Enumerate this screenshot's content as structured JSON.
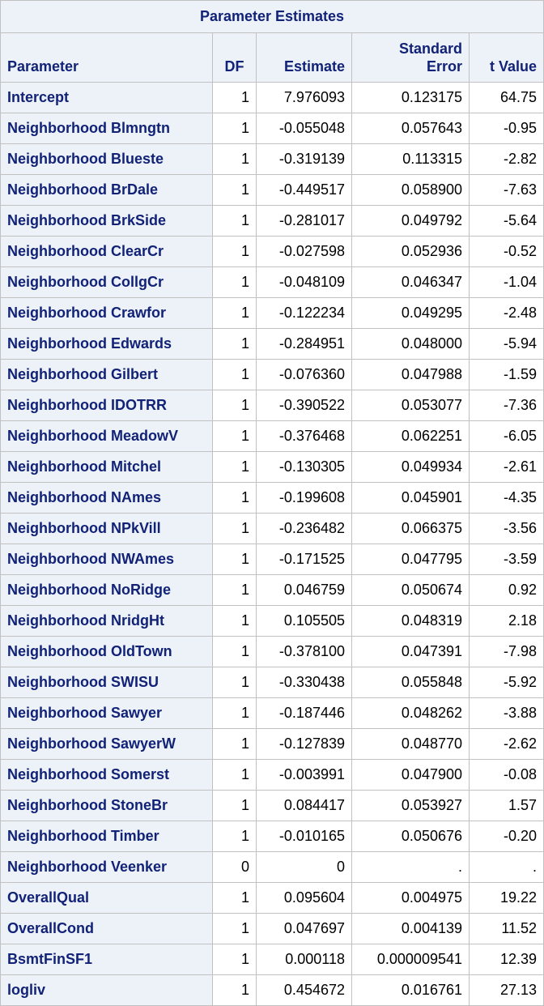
{
  "table": {
    "title": "Parameter Estimates",
    "columns": [
      "Parameter",
      "DF",
      "Estimate",
      "Standard Error",
      "t Value"
    ],
    "column_lines": {
      "standard_error": [
        "Standard",
        "Error"
      ]
    },
    "rows": [
      {
        "parameter": "Intercept",
        "df": "1",
        "estimate": "7.976093",
        "stderr": "0.123175",
        "t": "64.75"
      },
      {
        "parameter": "Neighborhood Blmngtn",
        "df": "1",
        "estimate": "-0.055048",
        "stderr": "0.057643",
        "t": "-0.95"
      },
      {
        "parameter": "Neighborhood Blueste",
        "df": "1",
        "estimate": "-0.319139",
        "stderr": "0.113315",
        "t": "-2.82"
      },
      {
        "parameter": "Neighborhood BrDale",
        "df": "1",
        "estimate": "-0.449517",
        "stderr": "0.058900",
        "t": "-7.63"
      },
      {
        "parameter": "Neighborhood BrkSide",
        "df": "1",
        "estimate": "-0.281017",
        "stderr": "0.049792",
        "t": "-5.64"
      },
      {
        "parameter": "Neighborhood ClearCr",
        "df": "1",
        "estimate": "-0.027598",
        "stderr": "0.052936",
        "t": "-0.52"
      },
      {
        "parameter": "Neighborhood CollgCr",
        "df": "1",
        "estimate": "-0.048109",
        "stderr": "0.046347",
        "t": "-1.04"
      },
      {
        "parameter": "Neighborhood Crawfor",
        "df": "1",
        "estimate": "-0.122234",
        "stderr": "0.049295",
        "t": "-2.48"
      },
      {
        "parameter": "Neighborhood Edwards",
        "df": "1",
        "estimate": "-0.284951",
        "stderr": "0.048000",
        "t": "-5.94"
      },
      {
        "parameter": "Neighborhood Gilbert",
        "df": "1",
        "estimate": "-0.076360",
        "stderr": "0.047988",
        "t": "-1.59"
      },
      {
        "parameter": "Neighborhood IDOTRR",
        "df": "1",
        "estimate": "-0.390522",
        "stderr": "0.053077",
        "t": "-7.36"
      },
      {
        "parameter": "Neighborhood MeadowV",
        "df": "1",
        "estimate": "-0.376468",
        "stderr": "0.062251",
        "t": "-6.05"
      },
      {
        "parameter": "Neighborhood Mitchel",
        "df": "1",
        "estimate": "-0.130305",
        "stderr": "0.049934",
        "t": "-2.61"
      },
      {
        "parameter": "Neighborhood NAmes",
        "df": "1",
        "estimate": "-0.199608",
        "stderr": "0.045901",
        "t": "-4.35"
      },
      {
        "parameter": "Neighborhood NPkVill",
        "df": "1",
        "estimate": "-0.236482",
        "stderr": "0.066375",
        "t": "-3.56"
      },
      {
        "parameter": "Neighborhood NWAmes",
        "df": "1",
        "estimate": "-0.171525",
        "stderr": "0.047795",
        "t": "-3.59"
      },
      {
        "parameter": "Neighborhood NoRidge",
        "df": "1",
        "estimate": "0.046759",
        "stderr": "0.050674",
        "t": "0.92"
      },
      {
        "parameter": "Neighborhood NridgHt",
        "df": "1",
        "estimate": "0.105505",
        "stderr": "0.048319",
        "t": "2.18"
      },
      {
        "parameter": "Neighborhood OldTown",
        "df": "1",
        "estimate": "-0.378100",
        "stderr": "0.047391",
        "t": "-7.98"
      },
      {
        "parameter": "Neighborhood SWISU",
        "df": "1",
        "estimate": "-0.330438",
        "stderr": "0.055848",
        "t": "-5.92"
      },
      {
        "parameter": "Neighborhood Sawyer",
        "df": "1",
        "estimate": "-0.187446",
        "stderr": "0.048262",
        "t": "-3.88"
      },
      {
        "parameter": "Neighborhood SawyerW",
        "df": "1",
        "estimate": "-0.127839",
        "stderr": "0.048770",
        "t": "-2.62"
      },
      {
        "parameter": "Neighborhood Somerst",
        "df": "1",
        "estimate": "-0.003991",
        "stderr": "0.047900",
        "t": "-0.08"
      },
      {
        "parameter": "Neighborhood StoneBr",
        "df": "1",
        "estimate": "0.084417",
        "stderr": "0.053927",
        "t": "1.57"
      },
      {
        "parameter": "Neighborhood Timber",
        "df": "1",
        "estimate": "-0.010165",
        "stderr": "0.050676",
        "t": "-0.20"
      },
      {
        "parameter": "Neighborhood Veenker",
        "df": "0",
        "estimate": "0",
        "stderr": ".",
        "t": "."
      },
      {
        "parameter": "OverallQual",
        "df": "1",
        "estimate": "0.095604",
        "stderr": "0.004975",
        "t": "19.22"
      },
      {
        "parameter": "OverallCond",
        "df": "1",
        "estimate": "0.047697",
        "stderr": "0.004139",
        "t": "11.52"
      },
      {
        "parameter": "BsmtFinSF1",
        "df": "1",
        "estimate": "0.000118",
        "stderr": "0.000009541",
        "t": "12.39"
      },
      {
        "parameter": "logliv",
        "df": "1",
        "estimate": "0.454672",
        "stderr": "0.016761",
        "t": "27.13"
      }
    ]
  }
}
